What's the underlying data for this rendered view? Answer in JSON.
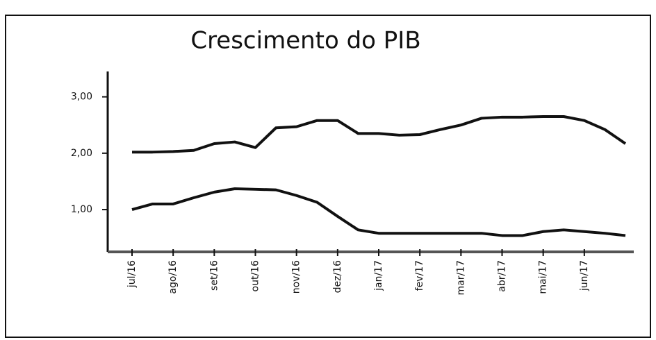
{
  "chart_data": {
    "type": "line",
    "title": "Crescimento do PIB",
    "categories": [
      "jul/16",
      null,
      "ago/16",
      null,
      "set/16",
      null,
      "out/16",
      null,
      "nov/16",
      null,
      "dez/16",
      null,
      "jan/17",
      null,
      "fev/17",
      null,
      "mar/17",
      null,
      "abr/17",
      null,
      "mai/17",
      null,
      "jun/17",
      null,
      null
    ],
    "series": [
      {
        "color": "#111111",
        "values": [
          2.02,
          2.02,
          2.03,
          2.05,
          2.17,
          2.2,
          2.1,
          2.45,
          2.47,
          2.58,
          2.58,
          2.35,
          2.35,
          2.32,
          2.33,
          2.42,
          2.5,
          2.62,
          2.64,
          2.64,
          2.65,
          2.65,
          2.58,
          2.42,
          2.17
        ]
      },
      {
        "color": "#111111",
        "values": [
          1.0,
          1.1,
          1.1,
          1.21,
          1.31,
          1.37,
          1.36,
          1.35,
          1.25,
          1.13,
          0.88,
          0.64,
          0.58,
          0.58,
          0.58,
          0.58,
          0.58,
          0.58,
          0.54,
          0.54,
          0.61,
          0.64,
          0.61,
          0.58,
          0.54
        ]
      }
    ],
    "ylim": [
      0.25,
      3.45
    ],
    "yticks": [
      {
        "value": 1,
        "label": "1,00"
      },
      {
        "value": 2,
        "label": "2,00"
      },
      {
        "value": 3,
        "label": "3,00"
      }
    ]
  }
}
